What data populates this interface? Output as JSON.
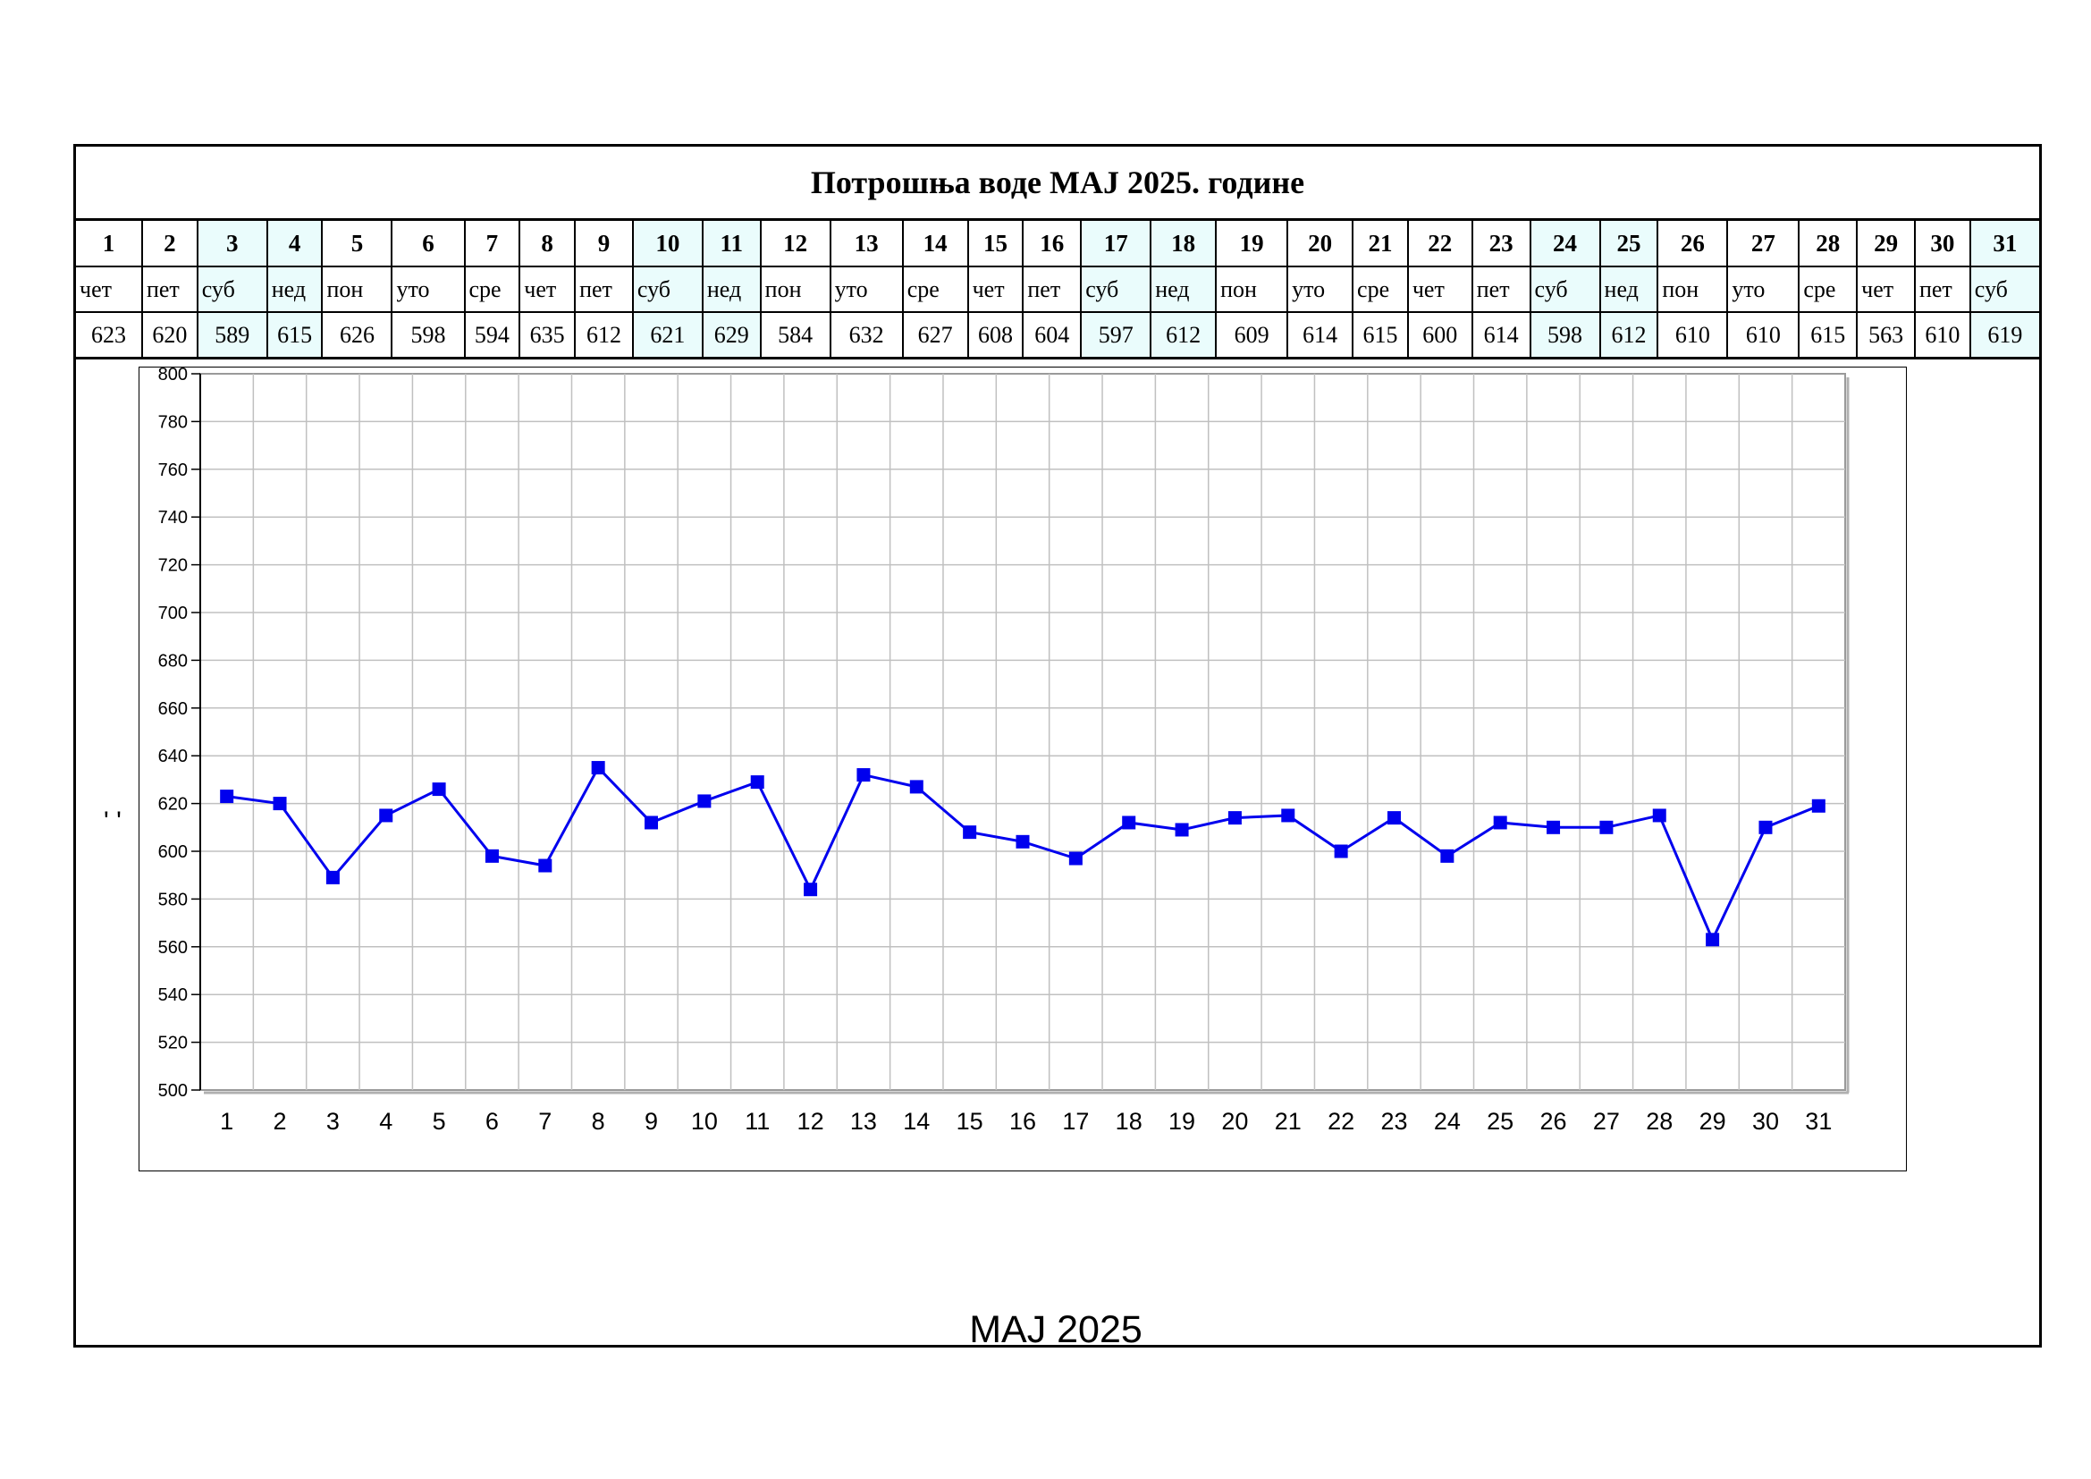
{
  "title": "Потрошња воде MAJ 2025. године",
  "footer_label": "MAJ 2025",
  "side_mark": "' '",
  "days": [
    {
      "n": "1",
      "wd": "чет",
      "v": "623",
      "we": false
    },
    {
      "n": "2",
      "wd": "пет",
      "v": "620",
      "we": false
    },
    {
      "n": "3",
      "wd": "суб",
      "v": "589",
      "we": true
    },
    {
      "n": "4",
      "wd": "нед",
      "v": "615",
      "we": true
    },
    {
      "n": "5",
      "wd": "пон",
      "v": "626",
      "we": false
    },
    {
      "n": "6",
      "wd": "уто",
      "v": "598",
      "we": false
    },
    {
      "n": "7",
      "wd": "сре",
      "v": "594",
      "we": false
    },
    {
      "n": "8",
      "wd": "чет",
      "v": "635",
      "we": false
    },
    {
      "n": "9",
      "wd": "пет",
      "v": "612",
      "we": false
    },
    {
      "n": "10",
      "wd": "суб",
      "v": "621",
      "we": true
    },
    {
      "n": "11",
      "wd": "нед",
      "v": "629",
      "we": true
    },
    {
      "n": "12",
      "wd": "пон",
      "v": "584",
      "we": false
    },
    {
      "n": "13",
      "wd": "уто",
      "v": "632",
      "we": false
    },
    {
      "n": "14",
      "wd": "сре",
      "v": "627",
      "we": false
    },
    {
      "n": "15",
      "wd": "чет",
      "v": "608",
      "we": false
    },
    {
      "n": "16",
      "wd": "пет",
      "v": "604",
      "we": false
    },
    {
      "n": "17",
      "wd": "суб",
      "v": "597",
      "we": true
    },
    {
      "n": "18",
      "wd": "нед",
      "v": "612",
      "we": true
    },
    {
      "n": "19",
      "wd": "пон",
      "v": "609",
      "we": false
    },
    {
      "n": "20",
      "wd": "уто",
      "v": "614",
      "we": false
    },
    {
      "n": "21",
      "wd": "сре",
      "v": "615",
      "we": false
    },
    {
      "n": "22",
      "wd": "чет",
      "v": "600",
      "we": false
    },
    {
      "n": "23",
      "wd": "пет",
      "v": "614",
      "we": false
    },
    {
      "n": "24",
      "wd": "суб",
      "v": "598",
      "we": true
    },
    {
      "n": "25",
      "wd": "нед",
      "v": "612",
      "we": true
    },
    {
      "n": "26",
      "wd": "пон",
      "v": "610",
      "we": false
    },
    {
      "n": "27",
      "wd": "уто",
      "v": "610",
      "we": false
    },
    {
      "n": "28",
      "wd": "сре",
      "v": "615",
      "we": false
    },
    {
      "n": "29",
      "wd": "чет",
      "v": "563",
      "we": false
    },
    {
      "n": "30",
      "wd": "пет",
      "v": "610",
      "we": false
    },
    {
      "n": "31",
      "wd": "суб",
      "v": "619",
      "we": true
    }
  ],
  "colors": {
    "series": "#0000ee",
    "weekend_cell": "#eafcfc",
    "grid": "#c0c0c0"
  },
  "chart_data": {
    "type": "line",
    "title": "",
    "xlabel": "",
    "ylabel": "",
    "categories": [
      "1",
      "2",
      "3",
      "4",
      "5",
      "6",
      "7",
      "8",
      "9",
      "10",
      "11",
      "12",
      "13",
      "14",
      "15",
      "16",
      "17",
      "18",
      "19",
      "20",
      "21",
      "22",
      "23",
      "24",
      "25",
      "26",
      "27",
      "28",
      "29",
      "30",
      "31"
    ],
    "series": [
      {
        "values": [
          623,
          620,
          589,
          615,
          626,
          598,
          594,
          635,
          612,
          621,
          629,
          584,
          632,
          627,
          608,
          604,
          597,
          612,
          609,
          614,
          615,
          600,
          614,
          598,
          612,
          610,
          610,
          615,
          563,
          610,
          619
        ]
      }
    ],
    "ylim": [
      500,
      800
    ],
    "yticks": [
      500,
      520,
      540,
      560,
      580,
      600,
      620,
      640,
      660,
      680,
      700,
      720,
      740,
      760,
      780,
      800
    ],
    "grid": true,
    "legend": "none",
    "marker": "square"
  }
}
